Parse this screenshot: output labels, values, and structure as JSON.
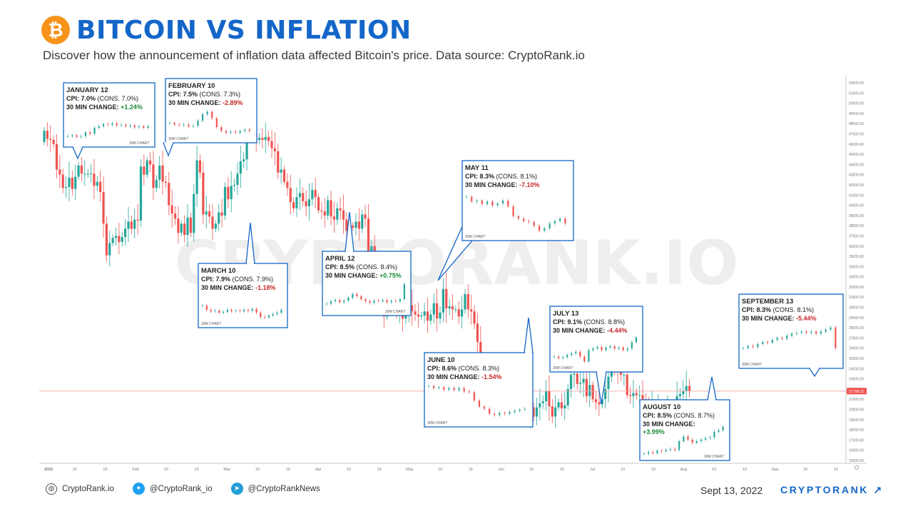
{
  "header": {
    "logo_glyph": "₿",
    "title": "BITCOIN VS INFLATION",
    "subtitle": "Discover how the announcement of inflation data affected Bitcoin's price. Data source: CryptoRank.io"
  },
  "watermark": "CRYPTORANK.IO",
  "footer": {
    "website_label": "CryptoRank.io",
    "website_icon": "globe-icon",
    "twitter_label": "@CryptoRank_io",
    "twitter_icon": "twitter-icon",
    "telegram_label": "@CryptoRankNews",
    "telegram_icon": "telegram-icon",
    "date": "Sept 13, 2022",
    "brand": "CRYPTORANK ↗"
  },
  "colors": {
    "accent": "#1466c8",
    "bitcoin_orange": "#f7931a",
    "up_candle": "#26a69a",
    "down_candle": "#ef5350",
    "positive_change": "#1b8a3a",
    "negative_change": "#c62828",
    "current_price_line": "#f3a3a3"
  },
  "chart_data": {
    "type": "candlestick",
    "timeframe": "daily",
    "y_axis_side": "right",
    "ylim": [
      15000,
      52000
    ],
    "y_ticks": [
      "15000.00",
      "16000.00",
      "17000.00",
      "18000.00",
      "19000.00",
      "20000.00",
      "21000.00",
      "22000.00",
      "23000.00",
      "24000.00",
      "25000.00",
      "26000.00",
      "27000.00",
      "28000.00",
      "29000.00",
      "30000.00",
      "31000.00",
      "32000.00",
      "33000.00",
      "34000.00",
      "35000.00",
      "36000.00",
      "37000.00",
      "38000.00",
      "39000.00",
      "40000.00",
      "41000.00",
      "42000.00",
      "43000.00",
      "44000.00",
      "45000.00",
      "46000.00",
      "47000.00",
      "48000.00",
      "49000.00",
      "50000.00",
      "51000.00",
      "52000.00"
    ],
    "x_tick_labels": [
      "2022",
      "10",
      "19",
      "Feb",
      "10",
      "19",
      "Mar",
      "10",
      "19",
      "Apr",
      "10",
      "19",
      "May",
      "10",
      "19",
      "Jun",
      "10",
      "19",
      "Jul",
      "10",
      "19",
      "Aug",
      "10",
      "19",
      "Sep",
      "10",
      "19"
    ],
    "current_price_label": "21798.22",
    "current_price": 21798.22,
    "close_series": [
      47300,
      46500,
      46400,
      46000,
      43500,
      43000,
      41700,
      41800,
      42700,
      41600,
      42800,
      43900,
      43100,
      43100,
      43100,
      43100,
      41900,
      42300,
      41300,
      38200,
      35100,
      36300,
      36800,
      37000,
      36400,
      36900,
      37700,
      38400,
      37700,
      38600,
      38500,
      43800,
      43000,
      44400,
      44000,
      41700,
      42500,
      43900,
      42300,
      42200,
      40000,
      39200,
      38700,
      37300,
      38200,
      37100,
      38800,
      37300,
      41100,
      44400,
      43200,
      39100,
      39400,
      38900,
      37700,
      38200,
      39300,
      39000,
      41800,
      40600,
      41900,
      42000,
      43100,
      44300,
      44500,
      46700,
      47000,
      47100,
      46400,
      46600,
      46400,
      46700,
      46300,
      45600,
      45300,
      43200,
      43500,
      42300,
      41700,
      40300,
      39700,
      40800,
      41200,
      40400,
      39900,
      40600,
      41500,
      40800,
      39500,
      39400,
      39000,
      40500,
      38900,
      38600,
      39700,
      39500,
      38600,
      37500,
      38000,
      37800,
      38400,
      37700,
      39100,
      38700,
      34800,
      36000,
      33500,
      31000,
      31100,
      29100,
      30100,
      30400,
      30500,
      29300,
      30300,
      28900,
      29500,
      30200,
      29600,
      29300,
      29100,
      29200,
      29600,
      28700,
      29300,
      30400,
      28900,
      29500,
      31800,
      29900,
      30100,
      29800,
      29800,
      29100,
      29800,
      31300,
      29800,
      29600,
      28400,
      26600,
      22500,
      22500,
      20400,
      20500,
      20600,
      20600,
      20200,
      20600,
      21000,
      21000,
      20700,
      19900,
      19400,
      19300,
      19300,
      19300,
      20200,
      19300,
      20200,
      20600,
      20800,
      21800,
      20300,
      19300,
      20200,
      20700,
      20100,
      20400,
      22000,
      23400,
      23500,
      22500,
      22600,
      23000,
      21300,
      22400,
      21000,
      20700,
      20500,
      21000,
      22000,
      23200,
      24400,
      24300,
      23900,
      23400,
      23400,
      21400,
      21300,
      21600,
      21400,
      21400,
      21000,
      20200,
      20000,
      20300,
      20100,
      20300,
      19900,
      19800,
      20100,
      19800,
      19300,
      21300,
      21500,
      21800,
      22300,
      21800
    ]
  },
  "callouts": [
    {
      "date": "JANUARY 12",
      "cpi_label": "CPI: 7.0%",
      "cons": "(CONS. 7.0%)",
      "change_label": "30 MIN CHANGE:",
      "change": "+1.24%",
      "direction": "up",
      "chart_caption": "30M CHART",
      "mini_series": [
        0.22,
        0.25,
        0.2,
        0.22,
        0.35,
        0.3,
        0.5,
        0.55,
        0.62,
        0.6,
        0.65,
        0.58,
        0.6,
        0.55,
        0.58,
        0.52,
        0.55,
        0.5,
        0.55
      ]
    },
    {
      "date": "FEBRUARY 10",
      "cpi_label": "CPI: 7.5%",
      "cons": "(CONS. 7.3%)",
      "change_label": "30 MIN CHANGE:",
      "change": "-2.89%",
      "direction": "down",
      "chart_caption": "30M CHART",
      "mini_series": [
        0.55,
        0.5,
        0.48,
        0.5,
        0.44,
        0.46,
        0.62,
        0.82,
        0.9,
        0.7,
        0.42,
        0.3,
        0.25,
        0.28,
        0.25,
        0.3,
        0.34,
        0.3
      ]
    },
    {
      "date": "MARCH 10",
      "cpi_label": "CPI: 7.9%",
      "cons": "(CONS. 7.9%)",
      "change_label": "30 MIN CHANGE:",
      "change": "-1.18%",
      "direction": "down",
      "chart_caption": "30M CHART",
      "mini_series": [
        0.7,
        0.55,
        0.5,
        0.52,
        0.45,
        0.48,
        0.55,
        0.5,
        0.52,
        0.5,
        0.55,
        0.52,
        0.58,
        0.45,
        0.3,
        0.28,
        0.35,
        0.4,
        0.45,
        0.55
      ]
    },
    {
      "date": "APRIL 12",
      "cpi_label": "CPI: 8.5%",
      "cons": "(CONS. 8.4%)",
      "change_label": "30 MIN CHANGE:",
      "change": "+0.75%",
      "direction": "up",
      "chart_caption": "30M CHART",
      "mini_series": [
        0.3,
        0.38,
        0.42,
        0.35,
        0.4,
        0.5,
        0.62,
        0.55,
        0.45,
        0.38,
        0.33,
        0.4,
        0.38,
        0.42,
        0.35,
        0.4,
        0.38,
        0.45,
        0.95
      ]
    },
    {
      "date": "MAY 11",
      "cpi_label": "CPI: 8.3%",
      "cons": "(CONS. 8.1%)",
      "change_label": "30 MIN CHANGE:",
      "change": "-7.10%",
      "direction": "down",
      "chart_caption": "30M CHART",
      "mini_series": [
        0.8,
        0.7,
        0.72,
        0.65,
        0.7,
        0.62,
        0.66,
        0.72,
        0.6,
        0.4,
        0.35,
        0.3,
        0.28,
        0.2,
        0.1,
        0.15,
        0.25,
        0.3,
        0.35,
        0.25
      ]
    },
    {
      "date": "JUNE 10",
      "cpi_label": "CPI: 8.6%",
      "cons": "(CONS. 8.3%)",
      "change_label": "30 MIN CHANGE:",
      "change": "-1.54%",
      "direction": "down",
      "chart_caption": "30M CHART",
      "mini_series": [
        0.85,
        0.8,
        0.82,
        0.76,
        0.8,
        0.75,
        0.8,
        0.72,
        0.7,
        0.5,
        0.35,
        0.3,
        0.18,
        0.15,
        0.2,
        0.18,
        0.22,
        0.25,
        0.28,
        0.3
      ]
    },
    {
      "date": "JULY 13",
      "cpi_label": "CPI: 9.1%",
      "cons": "(CONS. 8.8%)",
      "change_label": "30 MIN CHANGE:",
      "change": "-4.44%",
      "direction": "down",
      "chart_caption": "30M CHART",
      "mini_series": [
        0.3,
        0.25,
        0.28,
        0.35,
        0.4,
        0.45,
        0.3,
        0.15,
        0.5,
        0.55,
        0.6,
        0.5,
        0.58,
        0.62,
        0.55,
        0.58,
        0.5,
        0.55,
        0.75,
        0.9
      ]
    },
    {
      "date": "AUGUST 10",
      "cpi_label": "CPI: 8.5%",
      "cons": "(CONS. 8.7%)",
      "change_label": "30 MIN CHANGE:",
      "change": "+3.99%",
      "direction": "up",
      "chart_caption": "30M CHART",
      "mini_series": [
        0.1,
        0.15,
        0.12,
        0.2,
        0.18,
        0.22,
        0.25,
        0.22,
        0.5,
        0.65,
        0.55,
        0.45,
        0.5,
        0.55,
        0.6,
        0.62,
        0.8,
        0.85,
        0.95
      ]
    },
    {
      "date": "SEPTEMBER 13",
      "cpi_label": "CPI: 8.3%",
      "cons": "(CONS. 8.1%)",
      "change_label": "30 MIN CHANGE:",
      "change": "-5.44%",
      "direction": "down",
      "chart_caption": "30M CHART",
      "mini_series": [
        0.35,
        0.4,
        0.38,
        0.45,
        0.5,
        0.48,
        0.55,
        0.6,
        0.58,
        0.65,
        0.7,
        0.72,
        0.75,
        0.72,
        0.75,
        0.7,
        0.75,
        0.8,
        0.85,
        0.35
      ]
    }
  ]
}
